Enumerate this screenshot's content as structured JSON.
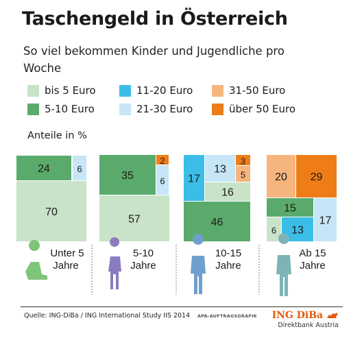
{
  "title": "Taschengeld in Österreich",
  "subtitle": "So viel bekommen Kinder und Jugendliche pro Woche",
  "unit_label": "Anteile in %",
  "legend": [
    {
      "label": "bis 5 Euro",
      "color": "#c9e3c8"
    },
    {
      "label": "5-10 Euro",
      "color": "#5aab6b"
    },
    {
      "label": "11-20 Euro",
      "color": "#3bbde8"
    },
    {
      "label": "21-30 Euro",
      "color": "#c6e6f7"
    },
    {
      "label": "31-50 Euro",
      "color": "#f7b57e"
    },
    {
      "label": "über 50 Euro",
      "color": "#ee7d18"
    }
  ],
  "chart_data": {
    "type": "treemap",
    "title": "Taschengeld in Österreich",
    "subtitle": "So viel bekommen Kinder und Jugendliche pro Woche",
    "unit": "Anteile in %",
    "categories": [
      "bis 5 Euro",
      "5-10 Euro",
      "11-20 Euro",
      "21-30 Euro",
      "31-50 Euro",
      "über 50 Euro"
    ],
    "groups": [
      {
        "label": "Unter 5 Jahre",
        "values": {
          "bis 5 Euro": 70,
          "5-10 Euro": 24,
          "21-30 Euro": 6
        }
      },
      {
        "label": "5-10 Jahre",
        "values": {
          "bis 5 Euro": 57,
          "5-10 Euro": 35,
          "21-30 Euro": 6,
          "über 50 Euro": 2
        }
      },
      {
        "label": "10-15 Jahre",
        "values": {
          "5-10 Euro": 46,
          "bis 5 Euro": 16,
          "11-20 Euro": 17,
          "21-30 Euro": 13,
          "31-50 Euro": 5,
          "über 50 Euro": 3
        }
      },
      {
        "label": "Ab 15 Jahre",
        "values": {
          "31-50 Euro": 20,
          "über 50 Euro": 29,
          "5-10 Euro": 15,
          "bis 5 Euro": 6,
          "11-20 Euro": 13,
          "21-30 Euro": 17
        }
      }
    ]
  },
  "footer": {
    "source": "Quelle: ING-DiBa / ING International Study IIS 2014",
    "credit": "APA-AUFTRAGSGRAFIK",
    "brand": "ING DiBa",
    "brand_sub": "Direktbank Austria"
  }
}
